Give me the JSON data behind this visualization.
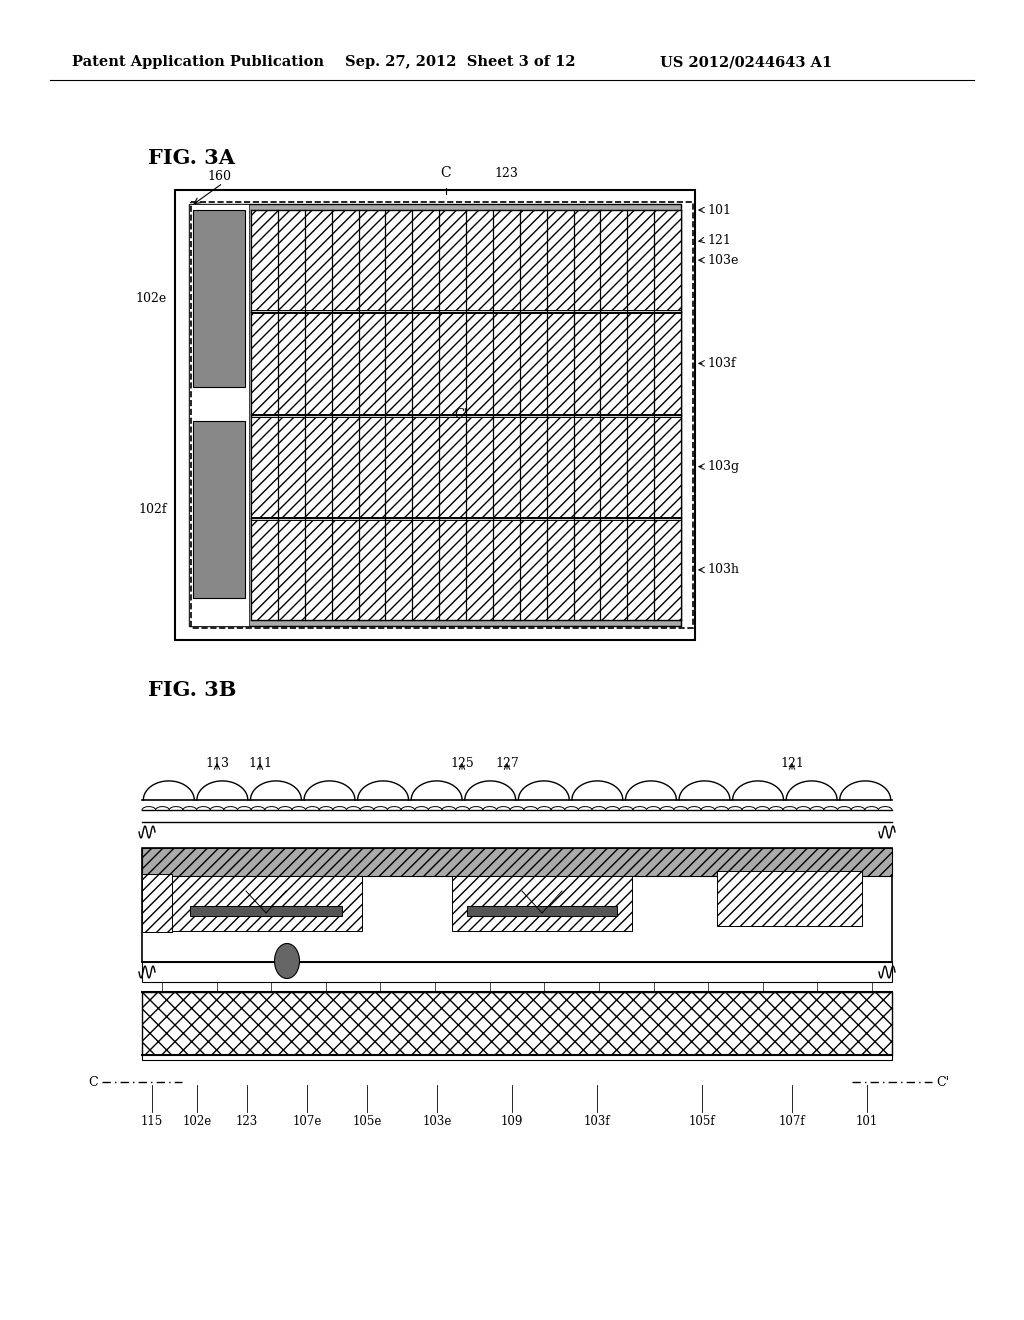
{
  "bg_color": "#ffffff",
  "header_text1": "Patent Application Publication",
  "header_text2": "Sep. 27, 2012  Sheet 3 of 12",
  "header_text3": "US 2012/0244643 A1"
}
